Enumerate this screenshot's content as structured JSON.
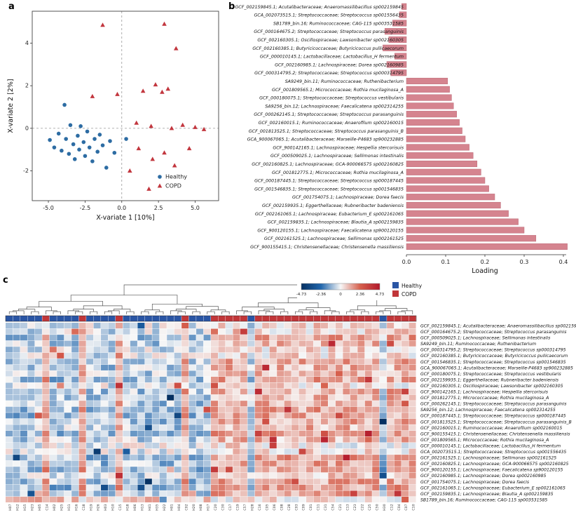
{
  "figure": {
    "panel_a_label": "a",
    "panel_b_label": "b",
    "panel_c_label": "c"
  },
  "chart_data": [
    {
      "id": "panel_a",
      "type": "scatter",
      "xlabel": "X-variate 1 [10%]",
      "ylabel": "X-variate 2 [2%]",
      "xlim": [
        -6.1,
        6.6
      ],
      "ylim": [
        -3.4,
        5.5
      ],
      "xticks": [
        -5.0,
        -2.5,
        0.0,
        2.5,
        5.0
      ],
      "yticks": [
        -2,
        0,
        2,
        4
      ],
      "grid": false,
      "reference_lines": {
        "x": 0,
        "y": 0,
        "style": "dashed"
      },
      "legend_position": "bottom-right-inside",
      "series": [
        {
          "name": "Healthy",
          "marker": "circle",
          "color": "#2d6ca3",
          "points": [
            [
              -4.9,
              -0.55
            ],
            [
              -4.6,
              -0.9
            ],
            [
              -4.3,
              -0.25
            ],
            [
              -4.1,
              -1.05
            ],
            [
              -3.9,
              1.1
            ],
            [
              -3.8,
              -0.5
            ],
            [
              -3.6,
              -1.2
            ],
            [
              -3.5,
              0.15
            ],
            [
              -3.3,
              -0.75
            ],
            [
              -3.2,
              -1.45
            ],
            [
              -3.0,
              -0.35
            ],
            [
              -2.9,
              -1.0
            ],
            [
              -2.8,
              0.1
            ],
            [
              -2.6,
              -0.65
            ],
            [
              -2.5,
              -1.3
            ],
            [
              -2.35,
              -0.15
            ],
            [
              -2.2,
              -0.9
            ],
            [
              -2.0,
              -1.55
            ],
            [
              -1.85,
              -0.5
            ],
            [
              -1.65,
              -1.1
            ],
            [
              -1.5,
              -0.3
            ],
            [
              -1.3,
              -0.8
            ],
            [
              -1.05,
              -1.85
            ],
            [
              -0.8,
              -0.6
            ],
            [
              -0.5,
              -1.15
            ],
            [
              0.3,
              -0.5
            ]
          ]
        },
        {
          "name": "COPD",
          "marker": "triangle",
          "color": "#c2363e",
          "points": [
            [
              -1.3,
              4.85
            ],
            [
              2.9,
              4.9
            ],
            [
              3.7,
              3.75
            ],
            [
              -2.0,
              1.5
            ],
            [
              -0.3,
              1.6
            ],
            [
              1.45,
              1.75
            ],
            [
              2.3,
              2.05
            ],
            [
              2.75,
              1.7
            ],
            [
              3.15,
              1.85
            ],
            [
              1.0,
              0.25
            ],
            [
              2.0,
              0.1
            ],
            [
              3.4,
              0.0
            ],
            [
              4.15,
              0.15
            ],
            [
              5.0,
              0.05
            ],
            [
              5.6,
              -0.05
            ],
            [
              1.15,
              -0.95
            ],
            [
              2.1,
              -1.45
            ],
            [
              2.9,
              -1.15
            ],
            [
              3.6,
              -1.75
            ],
            [
              4.6,
              -0.95
            ],
            [
              1.85,
              -2.85
            ],
            [
              0.55,
              -2.0
            ]
          ]
        }
      ]
    },
    {
      "id": "panel_b",
      "type": "bar",
      "orientation": "horizontal",
      "xlabel": "Loading",
      "xlim": [
        -0.08,
        0.44
      ],
      "xticks": [
        0.0,
        0.1,
        0.2,
        0.3,
        0.4
      ],
      "bar_color": "#d5848f",
      "bar_edge": "#bd6a77",
      "categories": [
        "GCF_002159845.1; Acutalibacteraceae; Anaeromassilibacillus sp002159845",
        "GCA_002073515.1; Streptococcaceae; Streptococcus sp001556435",
        "SB1789_bin.16; Ruminococcaceae; CAG-115 sp003531585",
        "GCF_000164675.2; Streptococcaceae; Streptococcus parasanguinis",
        "GCF_002160305.1; Oscillospiraceae; Lawsonibacter sp002160305",
        "GCF_002160385.1; Butyricicoccaceae; Butyricicoccus pullicaecorum",
        "GCF_000010145.1; Lactobacillaceae; Lactobacillus_H fermentum",
        "GCF_002160985.1; Lachnospiraceae; Dorea sp002160985",
        "GCF_000314795.2; Streptococcaceae; Streptococcus sp000314795",
        "SA9249_bin.11; Ruminococcaceae; Ruthenibacterium",
        "GCF_001809565.1; Micrococcaceae; Rothia mucilaginosa_A",
        "GCF_000180075.1; Streptococcaceae; Streptococcus vestibularis",
        "SA9256_bin.12; Lachnospiraceae; Faecalicatena sp002314255",
        "GCF_000262145.1; Streptococcaceae; Streptococcus parasanguinis",
        "GCF_002160015.1; Ruminococcaceae; Anaerofilum sp002160015",
        "GCF_001813525.1; Streptococcaceae; Streptococcus parasanguinis_B",
        "GCA_900067065.1; Acutalibacteraceae; Marseille-P4683 sp900232885",
        "GCF_900142165.1; Lachnospiraceae; Hespellia stercorisuis",
        "GCF_000509025.1; Lachnospiraceae; Sellimonas intestinalis",
        "GCF_002160825.1; Lachnospiraceae; GCA-900066575 sp002160825",
        "GCF_001812775.1; Micrococcaceae; Rothia mucilaginosa_A",
        "GCF_000187445.1; Streptococcaceae; Streptococcus sp000187445",
        "GCF_001546835.1; Streptococcaceae; Streptococcus sp001546835",
        "GCF_001754075.1; Lachnospiraceae; Dorea faecis",
        "GCF_002159935.1; Eggerthellaceae; Rubneribacter badeniensis",
        "GCF_002161065.1; Lachnospiraceae; Eubacterium_E sp002161065",
        "GCF_002159835.1; Lachnospiraceae; Blautia_A sp002159835",
        "GCF_900120155.1; Lachnospiraceae; Faecalicatena sp900120155",
        "GCF_002161525.1; Lachnospiraceae; Sellimonas sp002161525",
        "GCF_900155415.1; Christensenellaceae; Christensenella massiliensis"
      ],
      "values": [
        -0.012,
        -0.018,
        -0.035,
        -0.055,
        -0.045,
        -0.06,
        -0.03,
        -0.05,
        -0.04,
        0.105,
        0.11,
        0.115,
        0.12,
        0.128,
        0.135,
        0.142,
        0.15,
        0.16,
        0.17,
        0.18,
        0.19,
        0.2,
        0.21,
        0.225,
        0.24,
        0.26,
        0.285,
        0.3,
        0.33,
        0.41
      ]
    },
    {
      "id": "panel_c",
      "type": "heatmap",
      "colorbar": {
        "min": -4.73,
        "max": 4.73,
        "ticks": [
          "-4.73",
          "-2.36",
          "0",
          "2.36",
          "4.73"
        ],
        "stops": [
          "#053061",
          "#2166ac",
          "#f7f7f7",
          "#d6604d",
          "#b2182b"
        ]
      },
      "legend": [
        {
          "label": "Healthy",
          "color": "#2a55a4"
        },
        {
          "label": "COPD",
          "color": "#c13639"
        }
      ],
      "group_colors": {
        "H": "#2a55a4",
        "C": "#c13639"
      },
      "columns": [
        "H07",
        "H12",
        "H15",
        "H23",
        "H05",
        "C14",
        "H02",
        "H25",
        "H11",
        "H16",
        "C18",
        "H19",
        "H26",
        "H03",
        "H10",
        "C15",
        "H18",
        "H06",
        "H13",
        "H41",
        "H35",
        "H22",
        "H01",
        "H04",
        "C02",
        "H20",
        "H08",
        "H17",
        "C20",
        "C30",
        "C17",
        "C19",
        "C57",
        "H28",
        "C16",
        "C05",
        "C06",
        "C08",
        "C28",
        "C03",
        "C09",
        "C01",
        "C11",
        "C31",
        "C54",
        "C21",
        "C13",
        "C23",
        "C22",
        "C25",
        "C50",
        "H30",
        "C12",
        "C04",
        "C07",
        "C10"
      ],
      "rows": [
        "GCF_002159845.1; Acutalibacteraceae; Anaeromassilibacillus sp002159845",
        "GCF_000164675.2; Streptococcaceae; Streptococcus parasanguinis",
        "GCF_000509025.1; Lachnospiraceae; Sellimonas intestinalis",
        "SA9249_bin.11; Ruminococcaceae; Ruthenibacterium",
        "GCF_000314795.2; Streptococcaceae; Streptococcus sp000314795",
        "GCF_002160385.1; Butyricicoccaceae; Butyricicoccus pullicaecorum",
        "GCF_001546835.1; Streptococcaceae; Streptococcus sp001546835",
        "GCA_900067065.1; Acutalibacteraceae; Marseille-P4683 sp900232885",
        "GCF_000180075.1; Streptococcaceae; Streptococcus vestibularis",
        "GCF_002159935.1; Eggerthellaceae; Rubneribacter badeniensis",
        "GCF_002160305.1; Oscillospiraceae; Lawsonibacter sp002160305",
        "GCF_900142165.1; Lachnospiraceae; Hespellia stercorisuis",
        "GCF_001812775.1; Micrococcaceae; Rothia mucilaginosa_A",
        "GCF_000262145.1; Streptococcaceae; Streptococcus parasanguinis",
        "SA9256_bin.12; Lachnospiraceae; Faecalicatena sp002314255",
        "GCF_000187445.1; Streptococcaceae; Streptococcus sp000187445",
        "GCF_001813525.1; Streptococcaceae; Streptococcus parasanguinis_B",
        "GCF_002160015.1; Ruminococcaceae; Anaerofilum sp002160015",
        "GCF_900155415.1; Christensenellaceae; Christensenella massiliensis",
        "GCF_001809565.1; Micrococcaceae; Rothia mucilaginosa_A",
        "GCF_000010145.1; Lactobacillaceae; Lactobacillus_H fermentum",
        "GCA_002073515.1; Streptococcaceae; Streptococcus sp001556435",
        "GCF_002161525.1; Lachnospiraceae; Sellimonas sp002161525",
        "GCF_002160825.1; Lachnospiraceae; GCA-900066575 sp002160825",
        "GCF_900120155.1; Lachnospiraceae; Faecalicatena sp900120155",
        "GCF_002160985.1; Lachnospiraceae; Dorea sp002160985",
        "GCF_001754075.1; Lachnospiraceae; Dorea faecis",
        "GCF_002161065.1; Lachnospiraceae; Eubacterium_E sp002161065",
        "GCF_002159835.1; Lachnospiraceae; Blautia_A sp002159835",
        "SB1789_bin.16; Ruminococcaceae; CAG-115 sp003531585"
      ],
      "row_group_means": [
        [
          -0.3,
          0.5
        ],
        [
          -0.4,
          0.6
        ],
        [
          -0.9,
          1.2
        ],
        [
          -0.7,
          1.0
        ],
        [
          -0.4,
          0.5
        ],
        [
          -0.3,
          0.4
        ],
        [
          -0.8,
          1.1
        ],
        [
          -0.7,
          1.0
        ],
        [
          -0.6,
          0.9
        ],
        [
          -0.9,
          1.2
        ],
        [
          -0.3,
          0.4
        ],
        [
          -0.8,
          1.1
        ],
        [
          -0.7,
          1.0
        ],
        [
          -0.8,
          1.1
        ],
        [
          -0.8,
          1.2
        ],
        [
          -0.9,
          1.2
        ],
        [
          -0.8,
          1.1
        ],
        [
          -0.7,
          1.0
        ],
        [
          -1.1,
          1.5
        ],
        [
          -0.6,
          0.9
        ],
        [
          -0.2,
          0.3
        ],
        [
          -0.3,
          0.4
        ],
        [
          -1.0,
          1.4
        ],
        [
          -0.9,
          1.2
        ],
        [
          -1.0,
          1.3
        ],
        [
          -0.5,
          0.8
        ],
        [
          -0.9,
          1.2
        ],
        [
          -1.0,
          1.3
        ],
        [
          -1.0,
          1.3
        ],
        [
          0.8,
          0.3
        ]
      ]
    }
  ]
}
